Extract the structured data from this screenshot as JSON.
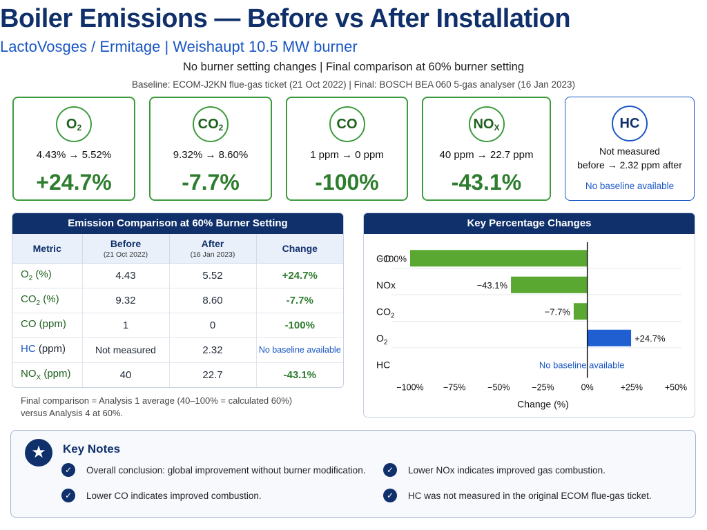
{
  "header": {
    "title": "Boiler Emissions — Before vs After Installation",
    "subtitle": "LactoVosges / Ermitage  |  Weishaupt 10.5 MW burner",
    "line3": "No burner setting changes  |  Final comparison at 60% burner setting",
    "line4": "Baseline: ECOM-J2KN flue-gas ticket (21 Oct 2022)  |  Final: BOSCH BEA 060 5-gas analyser (16 Jan 2023)"
  },
  "cards": [
    {
      "label": "O",
      "sub": "2",
      "values": "4.43% → 5.52%",
      "pct": "+24.7%"
    },
    {
      "label": "CO",
      "sub": "2",
      "values": "9.32% → 8.60%",
      "pct": "-7.7%"
    },
    {
      "label": "CO",
      "sub": "",
      "values": "1 ppm → 0 ppm",
      "pct": "-100%"
    },
    {
      "label": "NO",
      "sub": "X",
      "values": "40 ppm → 22.7 ppm",
      "pct": "-43.1%"
    }
  ],
  "hc_card": {
    "label": "HC",
    "line1": "Not measured",
    "line2": "before → 2.32 ppm after",
    "note": "No baseline available"
  },
  "table": {
    "title": "Emission Comparison at 60% Burner Setting",
    "headers": {
      "metric": "Metric",
      "before": "Before",
      "before_date": "(21 Oct 2022)",
      "after": "After",
      "after_date": "(16 Jan 2023)",
      "change": "Change"
    },
    "rows": [
      {
        "name": "O",
        "sub": "2",
        "unit": " (%)",
        "before": "4.43",
        "after": "5.52",
        "change": "+24.7%"
      },
      {
        "name": "CO",
        "sub": "2",
        "unit": " (%)",
        "before": "9.32",
        "after": "8.60",
        "change": "-7.7%"
      },
      {
        "name": "CO",
        "sub": "",
        "unit": " (ppm)",
        "before": "1",
        "after": "0",
        "change": "-100%"
      },
      {
        "name": "HC",
        "sub": "",
        "unit": " (ppm)",
        "before": "Not measured",
        "after": "2.32",
        "change": "No baseline available"
      },
      {
        "name": "NO",
        "sub": "X",
        "unit": " (ppm)",
        "before": "40",
        "after": "22.7",
        "change": "-43.1%"
      }
    ],
    "note_line1": "Final comparison = Analysis 1 average (40–100% = calculated 60%)",
    "note_line2": "versus Analysis 4 at 60%."
  },
  "chart_data": {
    "type": "bar",
    "orientation": "horizontal",
    "title": "Key Percentage Changes",
    "xlabel": "Change (%)",
    "xlim": [
      -100,
      50
    ],
    "xticks": [
      -100,
      -75,
      -50,
      -25,
      0,
      25,
      50
    ],
    "xtick_labels": [
      "−100%",
      "−75%",
      "−50%",
      "−25%",
      "0%",
      "+25%",
      "+50%"
    ],
    "categories": [
      {
        "label": "CO",
        "sub": ""
      },
      {
        "label": "NOx",
        "sub": ""
      },
      {
        "label": "CO",
        "sub": "2"
      },
      {
        "label": "O",
        "sub": "2"
      },
      {
        "label": "HC",
        "sub": ""
      }
    ],
    "values": [
      -100,
      -43.1,
      -7.7,
      24.7,
      null
    ],
    "value_labels": [
      "−100%",
      "−43.1%",
      "−7.7%",
      "+24.7%",
      "No baseline available"
    ],
    "colors": {
      "negative": "#5aa832",
      "positive": "#1f5fd1",
      "note": "#1a56c4"
    }
  },
  "notes": {
    "title": "Key Notes",
    "icon": "star-icon",
    "items": [
      "Overall conclusion: global improvement without burner modification.",
      "Lower NOx indicates improved gas combustion.",
      "Lower CO indicates improved combustion.",
      "HC was not measured in the original ECOM flue-gas ticket."
    ]
  }
}
